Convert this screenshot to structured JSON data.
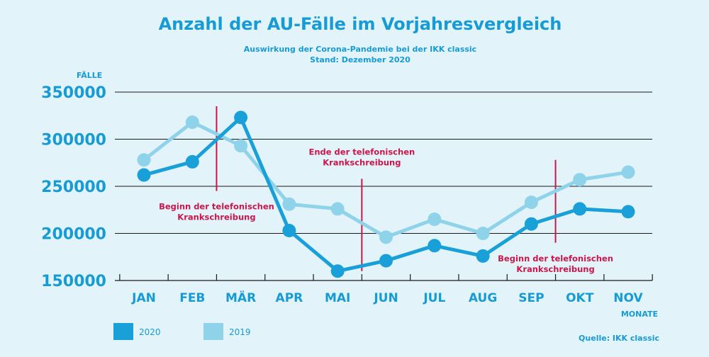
{
  "chart_data": {
    "type": "line",
    "title": "Anzahl der AU-Fälle im Vorjahresvergleich",
    "subtitle_lines": [
      "Auswirkung der Corona-Pandemie bei der IKK classic",
      "Stand: Dezember 2020"
    ],
    "ylabel": "FÄLLE",
    "xlabel": "MONATE",
    "categories": [
      "JAN",
      "FEB",
      "MÄR",
      "APR",
      "MAI",
      "JUN",
      "JUL",
      "AUG",
      "SEP",
      "OKT",
      "NOV"
    ],
    "yticks": [
      150000,
      200000,
      250000,
      300000,
      350000
    ],
    "ylim": [
      150000,
      350000
    ],
    "grid": true,
    "legend_position": "bottom-left",
    "series": [
      {
        "name": "2019",
        "color": "#8fd3ea",
        "values": [
          278000,
          318000,
          293000,
          231000,
          226000,
          196000,
          215000,
          200000,
          233000,
          257000,
          265000
        ]
      },
      {
        "name": "2020",
        "color": "#1aa0d8",
        "values": [
          262000,
          276000,
          323000,
          203000,
          160000,
          171000,
          187000,
          176000,
          210000,
          226000,
          223000
        ]
      }
    ],
    "annotations": [
      {
        "lines": [
          "Beginn der telefonischen",
          "Krankschreibung"
        ],
        "between": [
          "FEB",
          "MÄR"
        ],
        "text_side": "below",
        "line_range": [
          245000,
          335000
        ]
      },
      {
        "lines": [
          "Ende der telefonischen",
          "Krankschreibung"
        ],
        "between": [
          "MAI",
          "JUN"
        ],
        "text_side": "above",
        "line_range": [
          160000,
          258000
        ]
      },
      {
        "lines": [
          "Beginn der telefonischen",
          "Krankschreibung"
        ],
        "between": [
          "SEP",
          "OKT"
        ],
        "text_side": "below",
        "line_range": [
          190000,
          278000
        ]
      }
    ],
    "source": "Quelle: IKK classic",
    "colors": {
      "accent": "#169bd5",
      "annotation": "#c8174a",
      "grid": "#1a1a1a",
      "background": "#e3f3fa"
    }
  }
}
